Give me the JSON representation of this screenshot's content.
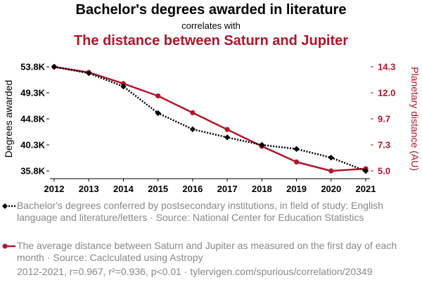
{
  "header": {
    "title": "Bachelor's degrees awarded in literature",
    "subtitle": "correlates with",
    "title2": "The distance between Saturn and Jupiter"
  },
  "colors": {
    "series1": "#000000",
    "series2": "#b4152b",
    "legend_text": "#888888"
  },
  "legend": {
    "item1": "Bachelor's degrees conferred by postsecondary institutions, in field of study: English language and literature/letters · Source: National Center for Education Statistics",
    "item2": "The average distance between Saturn and Jupiter as measured on the first day of each month · Source: Caclculated using Astropy"
  },
  "footer": "2012-2021, r=0.967, r²=0.936, p<0.01 · tylervigen.com/spurious/correlation/20349",
  "chart_data": {
    "type": "line",
    "x": [
      2012,
      2013,
      2014,
      2015,
      2016,
      2017,
      2018,
      2019,
      2020,
      2021
    ],
    "xticks": [
      "2012",
      "2013",
      "2014",
      "2015",
      "2016",
      "2017",
      "2018",
      "2019",
      "2020",
      "2021"
    ],
    "ylabel_left": "Degrees awarded",
    "ylabel_right": "Planetary distance (AU)",
    "yticks_left": [
      "53.8K",
      "49.3K",
      "44.8K",
      "40.3K",
      "35.8K"
    ],
    "yticks_right": [
      "14.3",
      "12.0",
      "9.7",
      "7.3",
      "5.0"
    ],
    "ylim_left": [
      35800,
      53800
    ],
    "ylim_right": [
      5.0,
      14.3
    ],
    "grid": false,
    "series": [
      {
        "axis": "left",
        "style": "dotted",
        "marker": "diamond",
        "values": [
          53800,
          52700,
          50400,
          45800,
          43000,
          41600,
          40300,
          39600,
          38100,
          35800
        ]
      },
      {
        "axis": "right",
        "style": "solid",
        "marker": "circle",
        "values": [
          14.3,
          13.8,
          12.8,
          11.7,
          10.2,
          8.7,
          7.2,
          5.8,
          5.0,
          5.2
        ]
      }
    ]
  }
}
